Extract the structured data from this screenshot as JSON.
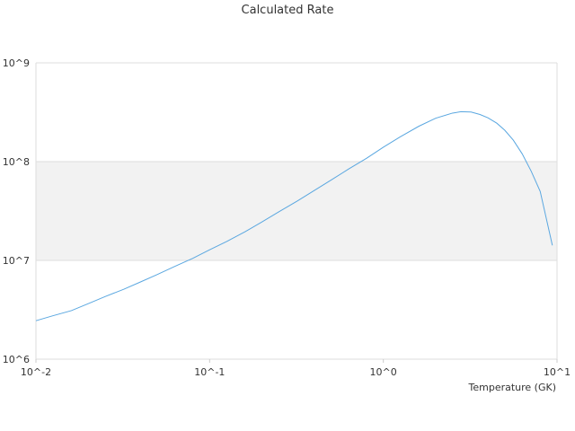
{
  "chart_data": {
    "type": "line",
    "title": "Calculated Rate",
    "xlabel": "Temperature (GK)",
    "ylabel": "",
    "xscale": "log",
    "yscale": "log",
    "xlim": [
      0.01,
      10
    ],
    "ylim": [
      1000000,
      1000000000
    ],
    "x_ticks": [
      {
        "value": 0.01,
        "label": "10^-2"
      },
      {
        "value": 0.1,
        "label": "10^-1"
      },
      {
        "value": 1,
        "label": "10^0"
      },
      {
        "value": 10,
        "label": "10^1"
      }
    ],
    "y_ticks": [
      {
        "value": 1000000,
        "label": "10^6"
      },
      {
        "value": 10000000,
        "label": "10^7"
      },
      {
        "value": 100000000,
        "label": "10^8"
      },
      {
        "value": 1000000000,
        "label": "10^9"
      }
    ],
    "band": {
      "from": 10000000,
      "to": 100000000,
      "color": "#f2f2f2"
    },
    "grid": true,
    "legend": "none",
    "series": [
      {
        "color": "#5aa7e0",
        "x": [
          0.01,
          0.0125,
          0.016,
          0.02,
          0.025,
          0.032,
          0.04,
          0.05,
          0.063,
          0.08,
          0.1,
          0.125,
          0.16,
          0.2,
          0.25,
          0.32,
          0.4,
          0.5,
          0.63,
          0.8,
          1.0,
          1.25,
          1.6,
          2.0,
          2.5,
          2.8,
          3.2,
          3.6,
          4.0,
          4.5,
          5.0,
          5.6,
          6.3,
          7.1,
          8.0,
          9.4
        ],
        "values": [
          2450000,
          2750000,
          3100000,
          3650000,
          4300000,
          5100000,
          6050000,
          7200000,
          8700000,
          10500000,
          12800000,
          15500000,
          19500000,
          24500000,
          31000000,
          40000000,
          51000000,
          65000000,
          84000000,
          108000000,
          140000000,
          178000000,
          228000000,
          275000000,
          310000000,
          320000000,
          318000000,
          300000000,
          278000000,
          245000000,
          208000000,
          165000000,
          120000000,
          80000000,
          50000000,
          14200000
        ]
      }
    ]
  }
}
